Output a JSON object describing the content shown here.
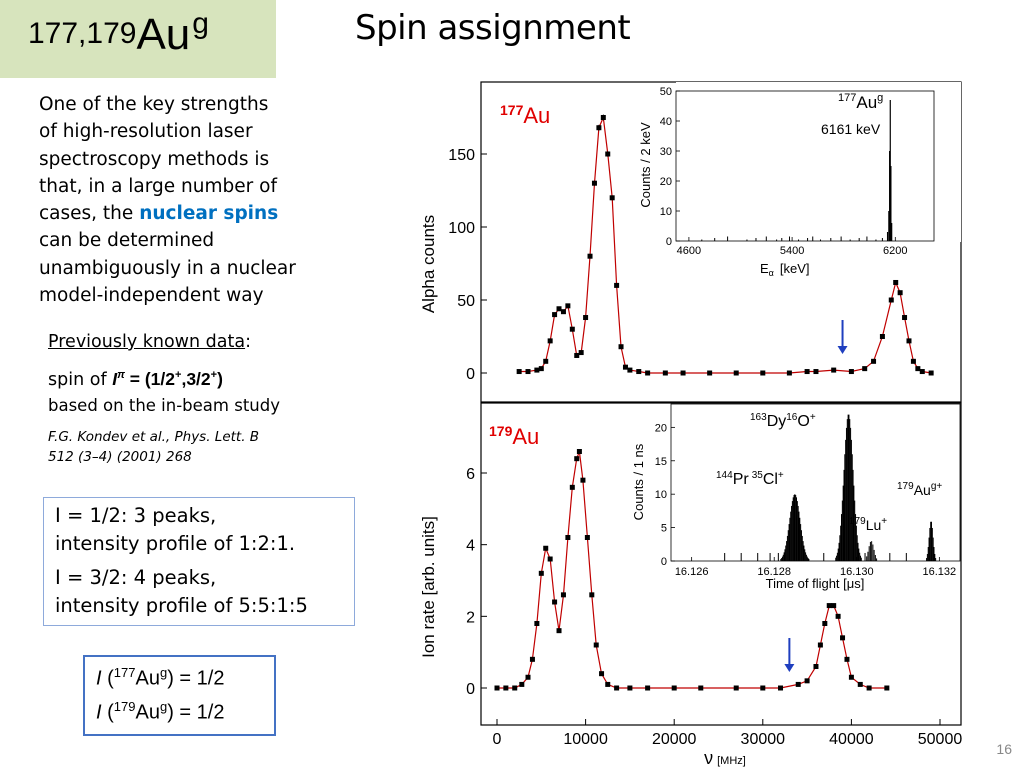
{
  "title": {
    "prefix": "177,179",
    "element": "Au",
    "superscript": "g"
  },
  "slide_title": "Spin assignment",
  "intro": {
    "line1": "One of the key strengths",
    "line2": "of high-resolution laser",
    "line3": "spectroscopy methods is",
    "line4": "that, in a large number of",
    "line5_pre": "cases, the",
    "line5_hl": "nuclear spins",
    "line6": "can be determined",
    "line7": "unambiguously in a nuclear",
    "line8": "model-independent way"
  },
  "previous": {
    "label": "Previously known data",
    "colon": ":"
  },
  "spin": {
    "pre": "spin of ",
    "I": "I",
    "pi": "π",
    "eq": " = (1/2",
    "sup1": "+",
    "mid": ",3/2",
    "sup2": "+",
    "close": ")"
  },
  "based": "based on the in-beam study",
  "reference": {
    "line1_pre": "F.G. Kondev et al., ",
    "line1_journal": "Phys. Lett. B",
    "line2": "512 (3–4) (2001) 268"
  },
  "box1": {
    "l1": "I = 1/2: 3 peaks,",
    "l2": "intensity profile of 1:2:1.",
    "l3": "I = 3/2: 4 peaks,",
    "l4": "intensity profile of 5:5:1:5"
  },
  "box2": {
    "l1": {
      "I": "I",
      "open": " (",
      "mass": "177",
      "el": "Au",
      "g": "g",
      "val": ") = 1/2"
    },
    "l2": {
      "I": "I",
      "open": " (",
      "mass": "179",
      "el": "Au",
      "g": "g",
      "val": ") = 1/2"
    }
  },
  "page_number": "16",
  "chart_data": [
    {
      "type": "scatter",
      "panel_label": {
        "mass": "177",
        "el": "Au"
      },
      "ylabel": "Alpha counts",
      "ylim": [
        0,
        175
      ],
      "yticks": [
        "0",
        "50",
        "100",
        "150"
      ],
      "arrow_at_x": 39000,
      "points": [
        [
          2500,
          1
        ],
        [
          3500,
          1
        ],
        [
          4500,
          2
        ],
        [
          5000,
          3
        ],
        [
          5500,
          8
        ],
        [
          6000,
          22
        ],
        [
          6500,
          40
        ],
        [
          7000,
          44
        ],
        [
          7500,
          42
        ],
        [
          8000,
          46
        ],
        [
          8500,
          30
        ],
        [
          9000,
          12
        ],
        [
          9500,
          14
        ],
        [
          10000,
          38
        ],
        [
          10500,
          80
        ],
        [
          11000,
          130
        ],
        [
          11500,
          168
        ],
        [
          12000,
          175
        ],
        [
          12500,
          150
        ],
        [
          13000,
          120
        ],
        [
          13500,
          60
        ],
        [
          14000,
          18
        ],
        [
          14500,
          4
        ],
        [
          15000,
          2
        ],
        [
          16000,
          1
        ],
        [
          17000,
          0
        ],
        [
          19000,
          0
        ],
        [
          21000,
          0
        ],
        [
          24000,
          0
        ],
        [
          27000,
          0
        ],
        [
          30000,
          0
        ],
        [
          33000,
          0
        ],
        [
          35000,
          1
        ],
        [
          36000,
          1
        ],
        [
          38000,
          2
        ],
        [
          40000,
          1
        ],
        [
          41500,
          3
        ],
        [
          42500,
          8
        ],
        [
          43500,
          25
        ],
        [
          44500,
          50
        ],
        [
          45000,
          62
        ],
        [
          45500,
          55
        ],
        [
          46000,
          38
        ],
        [
          46500,
          22
        ],
        [
          47000,
          8
        ],
        [
          47500,
          3
        ],
        [
          48000,
          1
        ],
        [
          49000,
          0
        ]
      ],
      "inset": {
        "type": "histogram",
        "ylabel": "Counts / 2 keV",
        "xlabel_sym": "E",
        "xlabel_sub": "α",
        "xlabel_unit": "[keV]",
        "xlim": [
          4500,
          6500
        ],
        "ylim": [
          0,
          50
        ],
        "xticks": [
          "4600",
          "5400",
          "6200"
        ],
        "yticks": [
          "0",
          "10",
          "20",
          "30",
          "40",
          "50"
        ],
        "label_mass": "177",
        "label_el": "Au",
        "label_g": "g",
        "label_energy": "6161 keV",
        "peak_x": 6161,
        "peak_y": 47
      }
    },
    {
      "type": "scatter",
      "panel_label": {
        "mass": "179",
        "el": "Au"
      },
      "ylabel": "Ion rate [arb. units]",
      "ylim": [
        0,
        7
      ],
      "yticks": [
        "0",
        "2",
        "4",
        "6"
      ],
      "xlabel_sym": "ν",
      "xlabel_unit": "[MHz]",
      "xlim": [
        -1000,
        52000
      ],
      "xticks": [
        "0",
        "10000",
        "20000",
        "30000",
        "40000",
        "50000"
      ],
      "arrow_at_x": 33000,
      "points": [
        [
          0,
          0
        ],
        [
          1000,
          0
        ],
        [
          2000,
          0
        ],
        [
          2800,
          0.1
        ],
        [
          3500,
          0.3
        ],
        [
          4000,
          0.8
        ],
        [
          4500,
          1.8
        ],
        [
          5000,
          3.2
        ],
        [
          5500,
          3.9
        ],
        [
          6000,
          3.6
        ],
        [
          6500,
          2.4
        ],
        [
          7000,
          1.6
        ],
        [
          7500,
          2.6
        ],
        [
          8000,
          4.2
        ],
        [
          8500,
          5.6
        ],
        [
          9000,
          6.4
        ],
        [
          9300,
          6.6
        ],
        [
          9700,
          5.8
        ],
        [
          10200,
          4.2
        ],
        [
          10700,
          2.6
        ],
        [
          11200,
          1.2
        ],
        [
          11800,
          0.4
        ],
        [
          12500,
          0.1
        ],
        [
          13500,
          0
        ],
        [
          15000,
          0
        ],
        [
          17000,
          0
        ],
        [
          20000,
          0
        ],
        [
          23000,
          0
        ],
        [
          27000,
          0
        ],
        [
          30000,
          0
        ],
        [
          32000,
          0
        ],
        [
          34000,
          0.1
        ],
        [
          35000,
          0.2
        ],
        [
          36000,
          0.6
        ],
        [
          36500,
          1.2
        ],
        [
          37000,
          1.8
        ],
        [
          37500,
          2.3
        ],
        [
          38000,
          2.3
        ],
        [
          38500,
          2.0
        ],
        [
          39000,
          1.4
        ],
        [
          39500,
          0.8
        ],
        [
          40000,
          0.3
        ],
        [
          41000,
          0.1
        ],
        [
          42000,
          0
        ],
        [
          44000,
          0
        ]
      ],
      "inset": {
        "type": "histogram",
        "ylabel": "Counts / 1 ns",
        "xlabel": "Time of flight [μs]",
        "xlim": [
          16.1255,
          16.1325
        ],
        "ylim": [
          0,
          22
        ],
        "xticks": [
          "16.126",
          "16.128",
          "16.130",
          "16.132"
        ],
        "yticks": [
          "0",
          "5",
          "10",
          "15",
          "20"
        ],
        "labels": [
          {
            "m1": "163",
            "e1": "Dy",
            "m2": "16",
            "e2": "O",
            "ch": "+"
          },
          {
            "m1": "144",
            "e1": "Pr",
            "m2": "35",
            "e2": "Cl",
            "ch": "+"
          },
          {
            "m1": "179",
            "e1": "Lu",
            "ch": "+"
          },
          {
            "m1": "179",
            "e1": "Au",
            "g": "g",
            "ch": "+"
          }
        ],
        "peaks": [
          [
            16.1285,
            10
          ],
          [
            16.1298,
            22
          ],
          [
            16.1318,
            6
          ]
        ]
      }
    }
  ]
}
